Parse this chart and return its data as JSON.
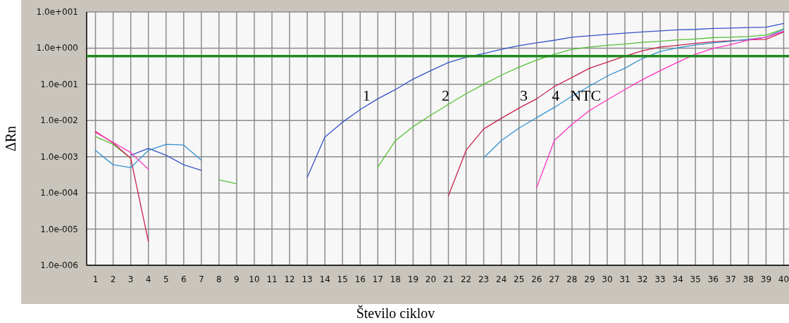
{
  "chart_data": {
    "type": "line",
    "xlabel": "Število ciklov",
    "ylabel": "ΔRn",
    "log": "y",
    "grid": true,
    "line_style": "solid",
    "xlim": [
      0.5,
      40.3
    ],
    "xticks": [
      1,
      2,
      3,
      4,
      5,
      6,
      7,
      8,
      9,
      10,
      11,
      12,
      13,
      14,
      15,
      16,
      17,
      18,
      19,
      20,
      21,
      22,
      23,
      24,
      25,
      26,
      27,
      28,
      29,
      30,
      31,
      32,
      33,
      34,
      35,
      36,
      37,
      38,
      39,
      40
    ],
    "ylim": [
      1e-06,
      10
    ],
    "yticks": [
      {
        "value": 1e-06,
        "label": "1.0e-006"
      },
      {
        "value": 1e-05,
        "label": "1.0e-005"
      },
      {
        "value": 0.0001,
        "label": "1.0e-004"
      },
      {
        "value": 0.001,
        "label": "1.0e-003"
      },
      {
        "value": 0.01,
        "label": "1.0e-002"
      },
      {
        "value": 0.1,
        "label": "1.0e-001"
      },
      {
        "value": 1,
        "label": "1.0e+000"
      },
      {
        "value": 10,
        "label": "1.0e+001"
      }
    ],
    "x": [
      1,
      2,
      3,
      4,
      5,
      6,
      7,
      8,
      9,
      10,
      11,
      12,
      13,
      14,
      15,
      16,
      17,
      18,
      19,
      20,
      21,
      22,
      23,
      24,
      25,
      26,
      27,
      28,
      29,
      30,
      31,
      32,
      33,
      34,
      35,
      36,
      37,
      38,
      39,
      40
    ],
    "ref_lines": [
      {
        "axis": "y",
        "value": 0.6,
        "color": "#1f8a1f"
      }
    ],
    "series": [
      {
        "name": "1",
        "color": "#3552c8",
        "values": [
          null,
          null,
          0.0011,
          0.0017,
          0.0011,
          0.0006,
          0.00042,
          null,
          null,
          null,
          null,
          null,
          0.00027,
          0.0035,
          0.009,
          0.02,
          0.04,
          0.072,
          0.14,
          0.24,
          0.4,
          0.56,
          0.71,
          0.93,
          1.17,
          1.4,
          1.65,
          2.0,
          2.2,
          2.4,
          2.6,
          2.8,
          3.0,
          3.2,
          3.3,
          3.5,
          3.6,
          3.7,
          3.8,
          4.8
        ]
      },
      {
        "name": "2",
        "color": "#55c035",
        "values": [
          0.0036,
          0.0022,
          0.0009,
          null,
          null,
          null,
          null,
          0.00023,
          0.00018,
          null,
          null,
          null,
          null,
          null,
          null,
          null,
          0.00052,
          0.0028,
          0.0068,
          0.014,
          0.028,
          0.055,
          0.1,
          0.18,
          0.3,
          0.47,
          0.68,
          0.93,
          1.07,
          1.2,
          1.3,
          1.45,
          1.55,
          1.7,
          1.8,
          1.95,
          2.0,
          2.1,
          2.3,
          3.4
        ]
      },
      {
        "name": "3",
        "color": "#c8204a",
        "values": [
          0.005,
          0.0024,
          0.0009,
          4.5e-06,
          null,
          null,
          null,
          null,
          null,
          null,
          null,
          null,
          null,
          null,
          null,
          null,
          null,
          null,
          null,
          null,
          8.3e-05,
          0.0015,
          0.0059,
          0.0115,
          0.022,
          0.04,
          0.087,
          0.155,
          0.28,
          0.41,
          0.6,
          0.85,
          1.07,
          1.2,
          1.35,
          1.5,
          1.6,
          1.7,
          1.75,
          2.8
        ]
      },
      {
        "name": "4",
        "color": "#3092d0",
        "values": [
          0.0015,
          0.0006,
          0.0005,
          0.0015,
          0.0022,
          0.0021,
          0.0008,
          null,
          null,
          null,
          null,
          null,
          null,
          null,
          null,
          null,
          null,
          null,
          null,
          null,
          null,
          null,
          0.00093,
          0.0028,
          0.0062,
          0.012,
          0.023,
          0.047,
          0.09,
          0.17,
          0.28,
          0.52,
          0.81,
          1.02,
          1.23,
          1.4,
          1.55,
          1.75,
          2.0,
          3.3
        ]
      },
      {
        "name": "NTC",
        "color": "#ff30c0",
        "values": [
          0.0047,
          0.0025,
          0.0013,
          0.00045,
          null,
          null,
          null,
          null,
          null,
          null,
          null,
          null,
          null,
          null,
          null,
          null,
          null,
          null,
          null,
          null,
          null,
          null,
          null,
          null,
          null,
          0.00014,
          0.0028,
          0.0078,
          0.019,
          0.037,
          0.072,
          0.135,
          0.24,
          0.41,
          0.68,
          0.98,
          1.26,
          1.67,
          2.0,
          2.95
        ]
      }
    ]
  }
}
